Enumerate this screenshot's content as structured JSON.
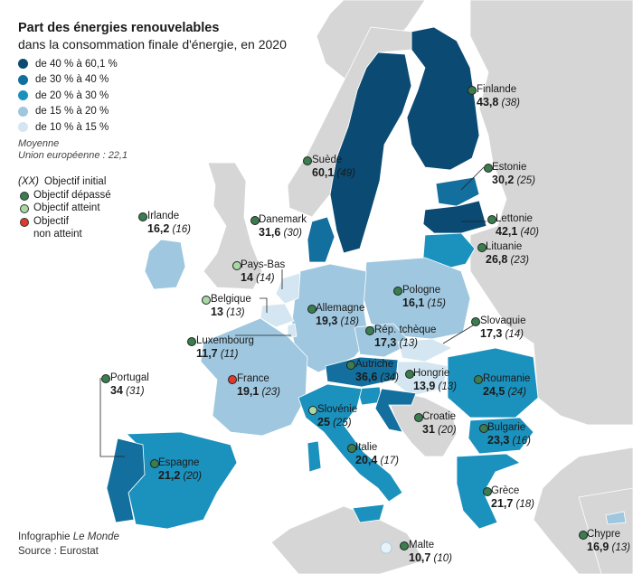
{
  "title": "Part des énergies renouvelables",
  "subtitle": "dans la consommation finale d'énergie, en 2020",
  "legend": [
    {
      "label": "de 40 % à 60,1 %",
      "color": "#0b4a72"
    },
    {
      "label": "de 30 % à 40 %",
      "color": "#126f9e"
    },
    {
      "label": "de 20 % à 30 %",
      "color": "#1b91bd"
    },
    {
      "label": "de 15 % à 20 %",
      "color": "#9fc7df"
    },
    {
      "label": "de 10 % à 15 %",
      "color": "#d3e6f1"
    }
  ],
  "average": {
    "line1": "Moyenne",
    "line2": "Union européenne : 22,1"
  },
  "key": {
    "objective_label": "(XX)",
    "objective_text": "Objectif initial",
    "exceeded": "Objectif dépassé",
    "met": "Objectif atteint",
    "not_met_line1": "Objectif",
    "not_met_line2": "non atteint",
    "colors": {
      "exceeded": "#3a7d4f",
      "met": "#a8d8a4",
      "not_met": "#e03a2e"
    }
  },
  "credit": {
    "line1": "Infographie ",
    "brand": "Le Monde",
    "line2": "Source : Eurostat"
  },
  "countries": [
    {
      "id": "finlande",
      "name": "Finlande",
      "value": "43,8",
      "objective": "(38)",
      "status": "exceeded"
    },
    {
      "id": "suede",
      "name": "Suède",
      "value": "60,1",
      "objective": "(49)",
      "status": "exceeded"
    },
    {
      "id": "estonie",
      "name": "Estonie",
      "value": "30,2",
      "objective": "(25)",
      "status": "exceeded"
    },
    {
      "id": "lettonie",
      "name": "Lettonie",
      "value": "42,1",
      "objective": "(40)",
      "status": "exceeded"
    },
    {
      "id": "lituanie",
      "name": "Lituanie",
      "value": "26,8",
      "objective": "(23)",
      "status": "exceeded"
    },
    {
      "id": "irlande",
      "name": "Irlande",
      "value": "16,2",
      "objective": "(16)",
      "status": "exceeded"
    },
    {
      "id": "danemark",
      "name": "Danemark",
      "value": "31,6",
      "objective": "(30)",
      "status": "exceeded"
    },
    {
      "id": "paysbas",
      "name": "Pays-Bas",
      "value": "14",
      "objective": "(14)",
      "status": "met"
    },
    {
      "id": "belgique",
      "name": "Belgique",
      "value": "13",
      "objective": "(13)",
      "status": "met"
    },
    {
      "id": "pologne",
      "name": "Pologne",
      "value": "16,1",
      "objective": "(15)",
      "status": "exceeded"
    },
    {
      "id": "allemagne",
      "name": "Allemagne",
      "value": "19,3",
      "objective": "(18)",
      "status": "exceeded"
    },
    {
      "id": "slovaquie",
      "name": "Slovaquie",
      "value": "17,3",
      "objective": "(14)",
      "status": "exceeded"
    },
    {
      "id": "tcheque",
      "name": "Rép. tchèque",
      "value": "17,3",
      "objective": "(13)",
      "status": "exceeded"
    },
    {
      "id": "luxembourg",
      "name": "Luxembourg",
      "value": "11,7",
      "objective": "(11)",
      "status": "exceeded"
    },
    {
      "id": "autriche",
      "name": "Autriche",
      "value": "36,6",
      "objective": "(34)",
      "status": "exceeded"
    },
    {
      "id": "hongrie",
      "name": "Hongrie",
      "value": "13,9",
      "objective": "(13)",
      "status": "exceeded"
    },
    {
      "id": "roumanie",
      "name": "Roumanie",
      "value": "24,5",
      "objective": "(24)",
      "status": "exceeded"
    },
    {
      "id": "portugal",
      "name": "Portugal",
      "value": "34",
      "objective": "(31)",
      "status": "exceeded"
    },
    {
      "id": "france",
      "name": "France",
      "value": "19,1",
      "objective": "(23)",
      "status": "not_met"
    },
    {
      "id": "slovenie",
      "name": "Slovénie",
      "value": "25",
      "objective": "(25)",
      "status": "met"
    },
    {
      "id": "croatie",
      "name": "Croatie",
      "value": "31",
      "objective": "(20)",
      "status": "exceeded"
    },
    {
      "id": "bulgarie",
      "name": "Bulgarie",
      "value": "23,3",
      "objective": "(16)",
      "status": "exceeded"
    },
    {
      "id": "italie",
      "name": "Italie",
      "value": "20,4",
      "objective": "(17)",
      "status": "exceeded"
    },
    {
      "id": "espagne",
      "name": "Espagne",
      "value": "21,2",
      "objective": "(20)",
      "status": "exceeded"
    },
    {
      "id": "grece",
      "name": "Grèce",
      "value": "21,7",
      "objective": "(18)",
      "status": "exceeded"
    },
    {
      "id": "malte",
      "name": "Malte",
      "value": "10,7",
      "objective": "(10)",
      "status": "exceeded"
    },
    {
      "id": "chypre",
      "name": "Chypre",
      "value": "16,9",
      "objective": "(13)",
      "status": "exceeded"
    }
  ]
}
